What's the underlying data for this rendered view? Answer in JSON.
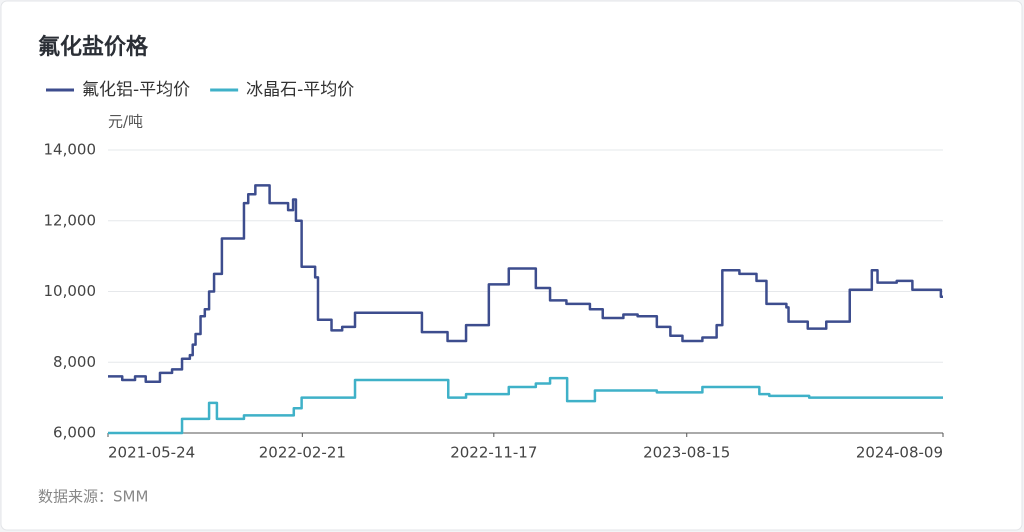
{
  "chart_data": {
    "type": "line",
    "title": "氟化盐价格",
    "y_unit": "元/吨",
    "source": "数据来源：SMM",
    "xlim": [
      "2021-05-24",
      "2024-08-09"
    ],
    "xticks": [
      "2021-05-24",
      "2022-02-21",
      "2022-11-17",
      "2023-08-15",
      "2024-08-09"
    ],
    "ylim": [
      6000,
      14000
    ],
    "yticks": [
      {
        "value": 6000,
        "label": "6,000"
      },
      {
        "value": 8000,
        "label": "8,000"
      },
      {
        "value": 10000,
        "label": "10,000"
      },
      {
        "value": 12000,
        "label": "12,000"
      },
      {
        "value": 14000,
        "label": "14,000"
      }
    ],
    "grid": true,
    "step": true,
    "series": [
      {
        "name": "氟化铝-平均价",
        "color": "#3d4d8e",
        "x": [
          "2021-05-24",
          "2021-06-13",
          "2021-07-01",
          "2021-07-16",
          "2021-08-05",
          "2021-08-22",
          "2021-09-05",
          "2021-09-16",
          "2021-09-20",
          "2021-09-24",
          "2021-10-01",
          "2021-10-07",
          "2021-10-13",
          "2021-10-20",
          "2021-10-31",
          "2021-12-01",
          "2021-12-07",
          "2021-12-17",
          "2022-01-06",
          "2022-02-01",
          "2022-02-08",
          "2022-02-12",
          "2022-02-20",
          "2022-03-11",
          "2022-03-15",
          "2022-04-03",
          "2022-04-18",
          "2022-05-06",
          "2022-08-08",
          "2022-09-13",
          "2022-10-09",
          "2022-11-10",
          "2022-12-08",
          "2023-01-15",
          "2023-02-04",
          "2023-02-27",
          "2023-04-01",
          "2023-04-19",
          "2023-05-18",
          "2023-06-07",
          "2023-07-04",
          "2023-07-23",
          "2023-08-09",
          "2023-09-06",
          "2023-09-26",
          "2023-10-04",
          "2023-10-28",
          "2023-11-21",
          "2023-12-05",
          "2024-01-02",
          "2024-01-05",
          "2024-02-01",
          "2024-02-27",
          "2024-03-31",
          "2024-05-01",
          "2024-05-09",
          "2024-06-05",
          "2024-06-27",
          "2024-08-06",
          "2024-08-09"
        ],
        "values": [
          7600,
          7500,
          7600,
          7450,
          7700,
          7800,
          8100,
          8200,
          8500,
          8800,
          9300,
          9500,
          10000,
          10500,
          11500,
          12500,
          12750,
          13000,
          12500,
          12300,
          12600,
          12000,
          10700,
          10400,
          9200,
          8900,
          9000,
          9400,
          8850,
          8600,
          9050,
          10200,
          10650,
          10100,
          9750,
          9650,
          9500,
          9250,
          9350,
          9300,
          9000,
          8750,
          8600,
          8700,
          9050,
          10600,
          10500,
          10300,
          9650,
          9550,
          9150,
          8950,
          9150,
          10050,
          10600,
          10250,
          10300,
          10050,
          9850,
          9850
        ]
      },
      {
        "name": "冰晶石-平均价",
        "color": "#3fb1c8",
        "x": [
          "2021-05-24",
          "2021-09-05",
          "2021-10-13",
          "2021-10-24",
          "2021-12-01",
          "2022-02-09",
          "2022-02-20",
          "2022-05-06",
          "2022-09-14",
          "2022-10-09",
          "2022-12-08",
          "2023-01-15",
          "2023-02-04",
          "2023-02-28",
          "2023-04-08",
          "2023-07-04",
          "2023-09-06",
          "2023-11-25",
          "2023-12-09",
          "2024-02-03",
          "2024-08-09"
        ],
        "values": [
          6000,
          6400,
          6850,
          6400,
          6500,
          6700,
          7000,
          7500,
          7000,
          7100,
          7300,
          7400,
          7550,
          6900,
          7200,
          7150,
          7300,
          7100,
          7050,
          7000,
          7000
        ]
      }
    ]
  }
}
